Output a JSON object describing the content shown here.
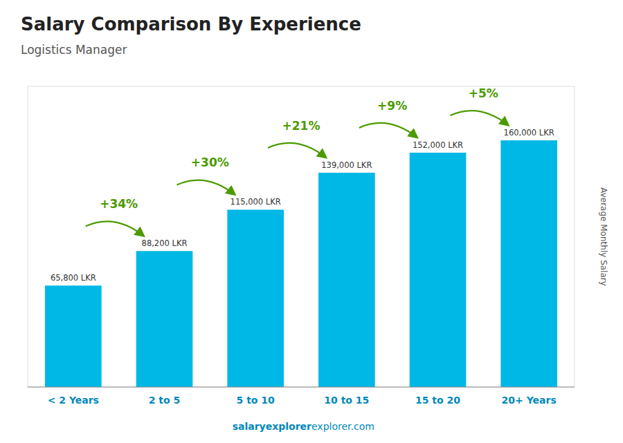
{
  "chart_data": {
    "type": "bar",
    "title": "Salary Comparison By Experience",
    "subtitle": "Logistics Manager",
    "y_label": "Average Monthly Salary",
    "categories": [
      "< 2 Years",
      "2 to 5",
      "5 to 10",
      "10 to 15",
      "15 to 20",
      "20+ Years"
    ],
    "values": [
      65800,
      88200,
      115000,
      139000,
      152000,
      160000
    ],
    "value_labels": [
      "65,800 LKR",
      "88,200 LKR",
      "115,000 LKR",
      "139,000 LKR",
      "152,000 LKR",
      "160,000 LKR"
    ],
    "data_labels": true,
    "annotations": [
      "+34%",
      "+30%",
      "+21%",
      "+9%",
      "+5%"
    ],
    "footer": [
      "salaryexplorer",
      "explorer.com"
    ],
    "color": "#00b8e6",
    "ylim": [
      0,
      195000
    ],
    "tick_labels": "x",
    "grid": false
  }
}
